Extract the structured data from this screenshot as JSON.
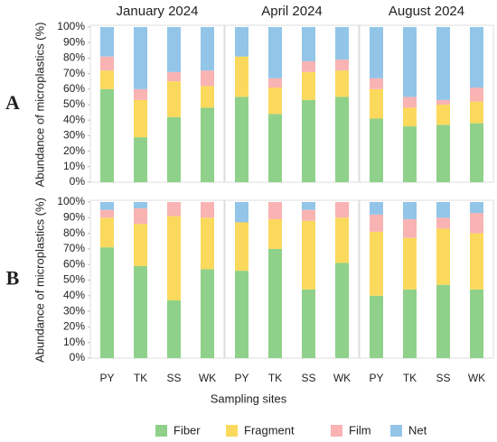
{
  "chart_data": {
    "type": "bar",
    "stacked": true,
    "ylabel": "Abundance of microplastics (%)",
    "xlabel": "Sampling sites",
    "column_titles": [
      "January 2024",
      "April 2024",
      "August 2024"
    ],
    "row_labels": [
      "A",
      "B"
    ],
    "categories": [
      "PY",
      "TK",
      "SS",
      "WK"
    ],
    "series": [
      {
        "name": "Fiber",
        "color": "#8fd18a"
      },
      {
        "name": "Fragment",
        "color": "#fbd95c"
      },
      {
        "name": "Film",
        "color": "#f9b3b3"
      },
      {
        "name": "Net",
        "color": "#92c5e8"
      }
    ],
    "ylim": [
      0,
      100
    ],
    "yticks": [
      {
        "value": 0,
        "label": "0%"
      },
      {
        "value": 10,
        "label": "10%"
      },
      {
        "value": 20,
        "label": "20%"
      },
      {
        "value": 30,
        "label": "30%"
      },
      {
        "value": 40,
        "label": "40%"
      },
      {
        "value": 50,
        "label": "50%"
      },
      {
        "value": 60,
        "label": "60%"
      },
      {
        "value": 70,
        "label": "70%"
      },
      {
        "value": 80,
        "label": "80%"
      },
      {
        "value": 90,
        "label": "90%"
      },
      {
        "value": 100,
        "label": "100%"
      }
    ],
    "grid": false,
    "legend": "bottom",
    "panels": [
      [
        {
          "values": [
            [
              60,
              29,
              42,
              48
            ],
            [
              12,
              24,
              23,
              14
            ],
            [
              9,
              7,
              6,
              10
            ],
            [
              19,
              40,
              29,
              28
            ]
          ]
        },
        {
          "values": [
            [
              55,
              44,
              53,
              55
            ],
            [
              26,
              17,
              18,
              17
            ],
            [
              0,
              6,
              7,
              7
            ],
            [
              19,
              33,
              22,
              21
            ]
          ]
        },
        {
          "values": [
            [
              41,
              36,
              37,
              38
            ],
            [
              19,
              12,
              13,
              14
            ],
            [
              7,
              7,
              3,
              9
            ],
            [
              33,
              45,
              47,
              39
            ]
          ]
        }
      ],
      [
        {
          "values": [
            [
              71,
              59,
              37,
              57
            ],
            [
              19,
              27,
              54,
              33
            ],
            [
              5,
              10,
              9,
              10
            ],
            [
              5,
              4,
              0,
              0
            ]
          ]
        },
        {
          "values": [
            [
              56,
              70,
              44,
              61
            ],
            [
              31,
              19,
              44,
              29
            ],
            [
              0,
              11,
              7,
              10
            ],
            [
              13,
              0,
              5,
              0
            ]
          ]
        },
        {
          "values": [
            [
              40,
              44,
              47,
              44
            ],
            [
              41,
              33,
              36,
              36
            ],
            [
              11,
              12,
              7,
              13
            ],
            [
              8,
              11,
              10,
              7
            ]
          ]
        }
      ]
    ]
  }
}
